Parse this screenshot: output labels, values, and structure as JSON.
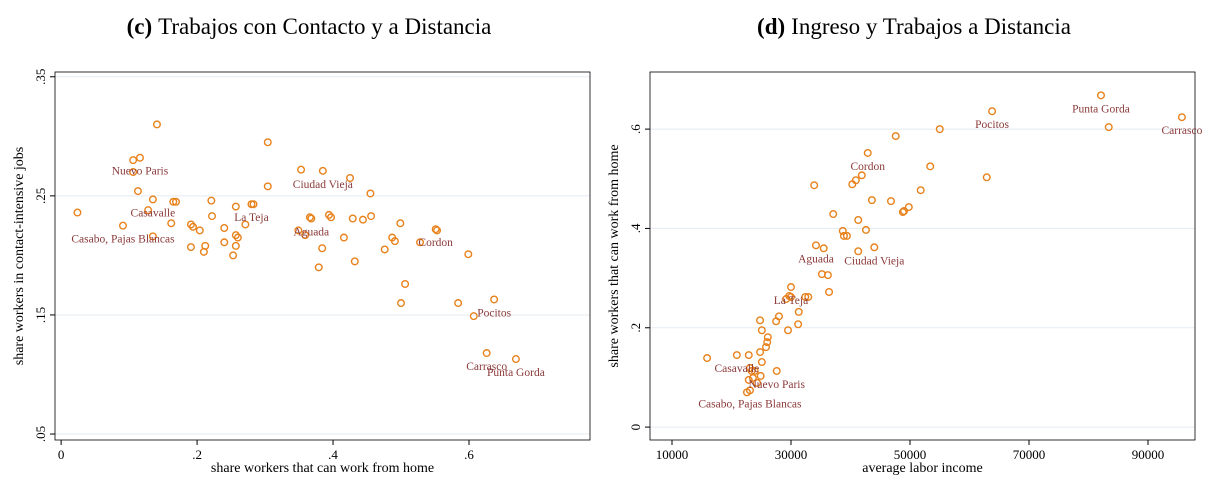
{
  "chart_data": [
    {
      "type": "scatter",
      "panel_label": "(c)",
      "title": "Trabajos con Contacto y a Distancia",
      "xlabel": "share workers that can work from home",
      "ylabel": "share workers in contact-intensive jobs",
      "color": "#e8821c",
      "label_color": "#8b3a3a",
      "grid": true,
      "xlim": [
        -0.009,
        0.778
      ],
      "ylim": [
        0.045,
        0.354
      ],
      "xticks": [
        0,
        {
          "value": 0.2,
          "label": ".2"
        },
        {
          "value": 0.4,
          "label": ".4"
        },
        {
          "value": 0.6,
          "label": ".6"
        }
      ],
      "yticks": [
        {
          "value": 0.05,
          "label": ".05"
        },
        {
          "value": 0.15,
          "label": ".15"
        },
        {
          "value": 0.25,
          "label": ".25"
        },
        {
          "value": 0.35,
          "label": ".35"
        }
      ],
      "x": [
        0.141,
        0.304,
        0.116,
        0.106,
        0.106,
        0.353,
        0.385,
        0.425,
        0.113,
        0.135,
        0.169,
        0.165,
        0.455,
        0.304,
        0.28,
        0.283,
        0.221,
        0.257,
        0.024,
        0.128,
        0.135,
        0.091,
        0.162,
        0.222,
        0.191,
        0.194,
        0.204,
        0.24,
        0.271,
        0.366,
        0.368,
        0.394,
        0.397,
        0.429,
        0.444,
        0.456,
        0.499,
        0.257,
        0.26,
        0.24,
        0.349,
        0.359,
        0.416,
        0.487,
        0.491,
        0.528,
        0.551,
        0.553,
        0.212,
        0.191,
        0.21,
        0.257,
        0.253,
        0.384,
        0.599,
        0.432,
        0.476,
        0.379,
        0.506,
        0.5,
        0.584,
        0.637,
        0.607,
        0.626,
        0.669
      ],
      "y": [
        0.31,
        0.295,
        0.282,
        0.28,
        0.27,
        0.272,
        0.271,
        0.265,
        0.254,
        0.247,
        0.245,
        0.245,
        0.252,
        0.258,
        0.243,
        0.243,
        0.246,
        0.241,
        0.236,
        0.238,
        0.216,
        0.225,
        0.227,
        0.233,
        0.226,
        0.224,
        0.221,
        0.223,
        0.226,
        0.232,
        0.231,
        0.234,
        0.232,
        0.231,
        0.23,
        0.233,
        0.227,
        0.217,
        0.215,
        0.211,
        0.221,
        0.217,
        0.215,
        0.215,
        0.212,
        0.211,
        0.222,
        0.221,
        0.208,
        0.207,
        0.203,
        0.208,
        0.2,
        0.206,
        0.201,
        0.195,
        0.205,
        0.19,
        0.176,
        0.16,
        0.16,
        0.163,
        0.149,
        0.118,
        0.113
      ],
      "labels": [
        null,
        null,
        "Nuevo Paris",
        null,
        null,
        null,
        "Ciudad Vieja",
        null,
        null,
        "Casavalle",
        null,
        null,
        null,
        null,
        "La Teja",
        null,
        null,
        null,
        null,
        null,
        null,
        "Casabo, Pajas Blancas",
        null,
        null,
        null,
        null,
        null,
        null,
        null,
        null,
        "Aguada",
        null,
        null,
        null,
        null,
        null,
        null,
        null,
        null,
        null,
        null,
        null,
        null,
        null,
        null,
        null,
        "Cordon",
        null,
        null,
        null,
        null,
        null,
        null,
        null,
        null,
        null,
        null,
        null,
        null,
        null,
        null,
        "Pocitos",
        null,
        "Carrasco",
        "Punta Gorda"
      ]
    },
    {
      "type": "scatter",
      "panel_label": "(d)",
      "title": "Ingreso y Trabajos a Distancia",
      "xlabel": "average labor income",
      "ylabel": "share workers that can work from home",
      "color": "#e8821c",
      "label_color": "#8b3a3a",
      "grid": true,
      "xlim": [
        6303,
        97900
      ],
      "ylim": [
        -0.026,
        0.715
      ],
      "xticks": [
        10000,
        30000,
        50000,
        70000,
        90000
      ],
      "yticks": [
        0,
        {
          "value": 0.2,
          "label": ".2"
        },
        {
          "value": 0.4,
          "label": ".4"
        },
        {
          "value": 0.6,
          "label": ".6"
        }
      ],
      "x": [
        82100,
        63800,
        95700,
        83400,
        55000,
        47600,
        42900,
        53400,
        41900,
        40900,
        40300,
        33900,
        62900,
        51800,
        43600,
        46800,
        49800,
        49000,
        48800,
        37100,
        41300,
        42600,
        38700,
        38900,
        39400,
        44000,
        34200,
        35500,
        41300,
        35200,
        36200,
        36400,
        30000,
        29700,
        30000,
        32400,
        32900,
        29200,
        31300,
        27980,
        27500,
        24800,
        31200,
        25100,
        29500,
        26100,
        26000,
        25800,
        24800,
        20900,
        22900,
        25100,
        23100,
        23900,
        23400,
        24900,
        27600,
        23600,
        24300,
        23100,
        15900,
        22600,
        22900
      ],
      "y": [
        0.668,
        0.636,
        0.624,
        0.604,
        0.6,
        0.586,
        0.552,
        0.525,
        0.507,
        0.497,
        0.489,
        0.487,
        0.503,
        0.477,
        0.457,
        0.455,
        0.443,
        0.435,
        0.433,
        0.429,
        0.417,
        0.397,
        0.395,
        0.385,
        0.385,
        0.362,
        0.366,
        0.36,
        0.354,
        0.308,
        0.306,
        0.272,
        0.282,
        0.264,
        0.262,
        0.262,
        0.262,
        0.258,
        0.232,
        0.223,
        0.213,
        0.215,
        0.207,
        0.195,
        0.195,
        0.181,
        0.171,
        0.161,
        0.151,
        0.145,
        0.145,
        0.131,
        0.119,
        0.113,
        0.113,
        0.103,
        0.113,
        0.099,
        0.089,
        0.074,
        0.139,
        0.07,
        0.095
      ],
      "labels": [
        "Punta Gorda",
        "Pocitos",
        "Carrasco",
        null,
        null,
        null,
        "Cordon",
        null,
        null,
        null,
        null,
        null,
        null,
        null,
        null,
        null,
        null,
        null,
        null,
        null,
        null,
        null,
        null,
        null,
        null,
        "Ciudad Vieja",
        "Aguada",
        null,
        null,
        null,
        null,
        null,
        "La Teja",
        null,
        null,
        null,
        null,
        null,
        null,
        null,
        null,
        null,
        null,
        null,
        null,
        null,
        null,
        null,
        null,
        "Casavalle",
        null,
        null,
        null,
        null,
        null,
        null,
        "Nuevo Paris",
        null,
        null,
        "Casabo, Pajas Blancas",
        null,
        null,
        null
      ]
    }
  ]
}
